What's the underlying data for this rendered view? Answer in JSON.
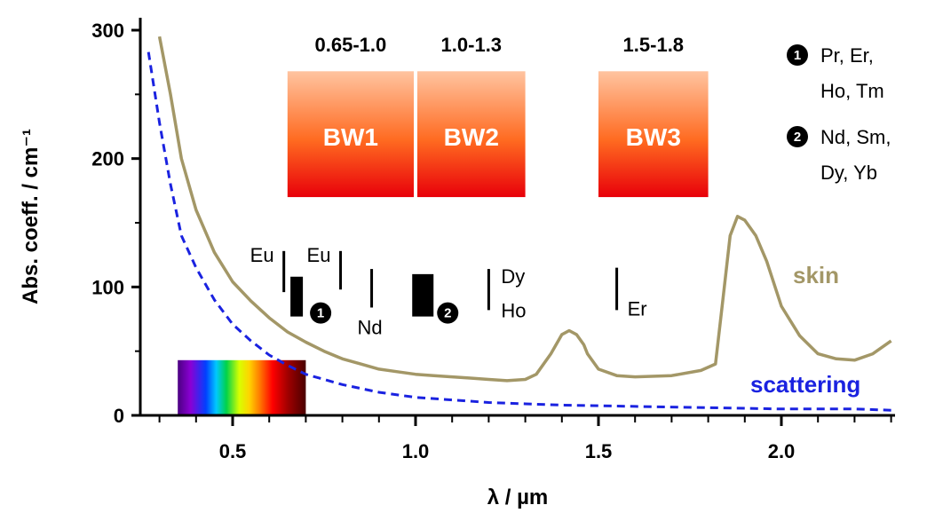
{
  "chart_data": {
    "type": "line",
    "xlabel": "λ / µm",
    "ylabel": "Abs. coeff. / cm⁻¹",
    "xlim": [
      0.25,
      2.32
    ],
    "ylim": [
      0,
      310
    ],
    "x_ticks": [
      "0.5",
      "1.0",
      "1.5",
      "2.0"
    ],
    "y_ticks": [
      "0",
      "100",
      "200",
      "300"
    ],
    "series": [
      {
        "name": "skin",
        "color": "#a39767",
        "style": "solid",
        "points": [
          [
            0.3,
            295
          ],
          [
            0.33,
            250
          ],
          [
            0.36,
            200
          ],
          [
            0.4,
            160
          ],
          [
            0.45,
            127
          ],
          [
            0.5,
            104
          ],
          [
            0.55,
            89
          ],
          [
            0.6,
            76
          ],
          [
            0.65,
            65
          ],
          [
            0.7,
            57
          ],
          [
            0.75,
            50
          ],
          [
            0.8,
            44
          ],
          [
            0.85,
            40
          ],
          [
            0.9,
            36
          ],
          [
            0.95,
            34
          ],
          [
            1.0,
            32
          ],
          [
            1.05,
            31
          ],
          [
            1.1,
            30
          ],
          [
            1.15,
            29
          ],
          [
            1.2,
            28
          ],
          [
            1.25,
            27
          ],
          [
            1.3,
            28
          ],
          [
            1.33,
            32
          ],
          [
            1.37,
            48
          ],
          [
            1.4,
            63
          ],
          [
            1.42,
            66
          ],
          [
            1.44,
            63
          ],
          [
            1.46,
            55
          ],
          [
            1.47,
            48
          ],
          [
            1.5,
            36
          ],
          [
            1.55,
            31
          ],
          [
            1.6,
            30
          ],
          [
            1.7,
            31
          ],
          [
            1.78,
            35
          ],
          [
            1.82,
            40
          ],
          [
            1.84,
            90
          ],
          [
            1.86,
            140
          ],
          [
            1.88,
            155
          ],
          [
            1.9,
            152
          ],
          [
            1.93,
            140
          ],
          [
            1.96,
            120
          ],
          [
            2.0,
            85
          ],
          [
            2.05,
            62
          ],
          [
            2.1,
            48
          ],
          [
            2.15,
            44
          ],
          [
            2.2,
            43
          ],
          [
            2.25,
            48
          ],
          [
            2.3,
            58
          ]
        ]
      },
      {
        "name": "scattering",
        "color": "#1a22e0",
        "style": "dashed",
        "points": [
          [
            0.27,
            283
          ],
          [
            0.3,
            228
          ],
          [
            0.33,
            180
          ],
          [
            0.36,
            140
          ],
          [
            0.4,
            115
          ],
          [
            0.45,
            90
          ],
          [
            0.5,
            71
          ],
          [
            0.55,
            58
          ],
          [
            0.6,
            47
          ],
          [
            0.65,
            39
          ],
          [
            0.7,
            32
          ],
          [
            0.8,
            24
          ],
          [
            0.9,
            18
          ],
          [
            1.0,
            14
          ],
          [
            1.1,
            12
          ],
          [
            1.2,
            10
          ],
          [
            1.3,
            9
          ],
          [
            1.4,
            8
          ],
          [
            1.6,
            7
          ],
          [
            1.8,
            6
          ],
          [
            2.0,
            5
          ],
          [
            2.2,
            5
          ],
          [
            2.3,
            4
          ]
        ]
      }
    ],
    "bands": [
      {
        "label": "BW1",
        "range_label": "0.65-1.0",
        "x_start": 0.65,
        "x_end": 1.0,
        "gradient_top": "#ffb890",
        "gradient_bottom": "#e8000a"
      },
      {
        "label": "BW2",
        "range_label": "1.0-1.3",
        "x_start": 1.0,
        "x_end": 1.3,
        "gradient_top": "#ffb890",
        "gradient_bottom": "#e8000a"
      },
      {
        "label": "BW3",
        "range_label": "1.5-1.8",
        "x_start": 1.5,
        "x_end": 1.8,
        "gradient_top": "#ffb890",
        "gradient_bottom": "#e8000a"
      }
    ],
    "visible_spectrum": {
      "x_start": 0.35,
      "x_end": 0.7
    },
    "ion_markers": [
      {
        "label": "Eu",
        "x": 0.64,
        "y_bottom": 96,
        "y_top": 128,
        "label_pos": "left-above",
        "thick": false
      },
      {
        "label": "",
        "x": 0.675,
        "y_bottom": 77,
        "y_top": 108,
        "thick": true,
        "group": 1
      },
      {
        "label": "Eu",
        "x": 0.795,
        "y_bottom": 98,
        "y_top": 128,
        "label_pos": "left-above",
        "thick": false
      },
      {
        "label": "Nd",
        "x": 0.88,
        "y_bottom": 84,
        "y_top": 114,
        "label_pos": "below",
        "thick": false
      },
      {
        "label": "",
        "x": 1.02,
        "y_bottom": 77,
        "y_top": 110,
        "thick": true,
        "group": 2
      },
      {
        "label": "Dy",
        "label2": "Ho",
        "x": 1.2,
        "y_bottom": 82,
        "y_top": 114,
        "label_pos": "right",
        "thick": false
      },
      {
        "label": "Er",
        "x": 1.55,
        "y_bottom": 82,
        "y_top": 115,
        "label_pos": "right-below",
        "thick": false
      }
    ],
    "groups": [
      {
        "badge": "1",
        "line1": "Pr, Er,",
        "line2": "Ho, Tm"
      },
      {
        "badge": "2",
        "line1": "Nd, Sm,",
        "line2": "Dy, Yb"
      }
    ]
  }
}
